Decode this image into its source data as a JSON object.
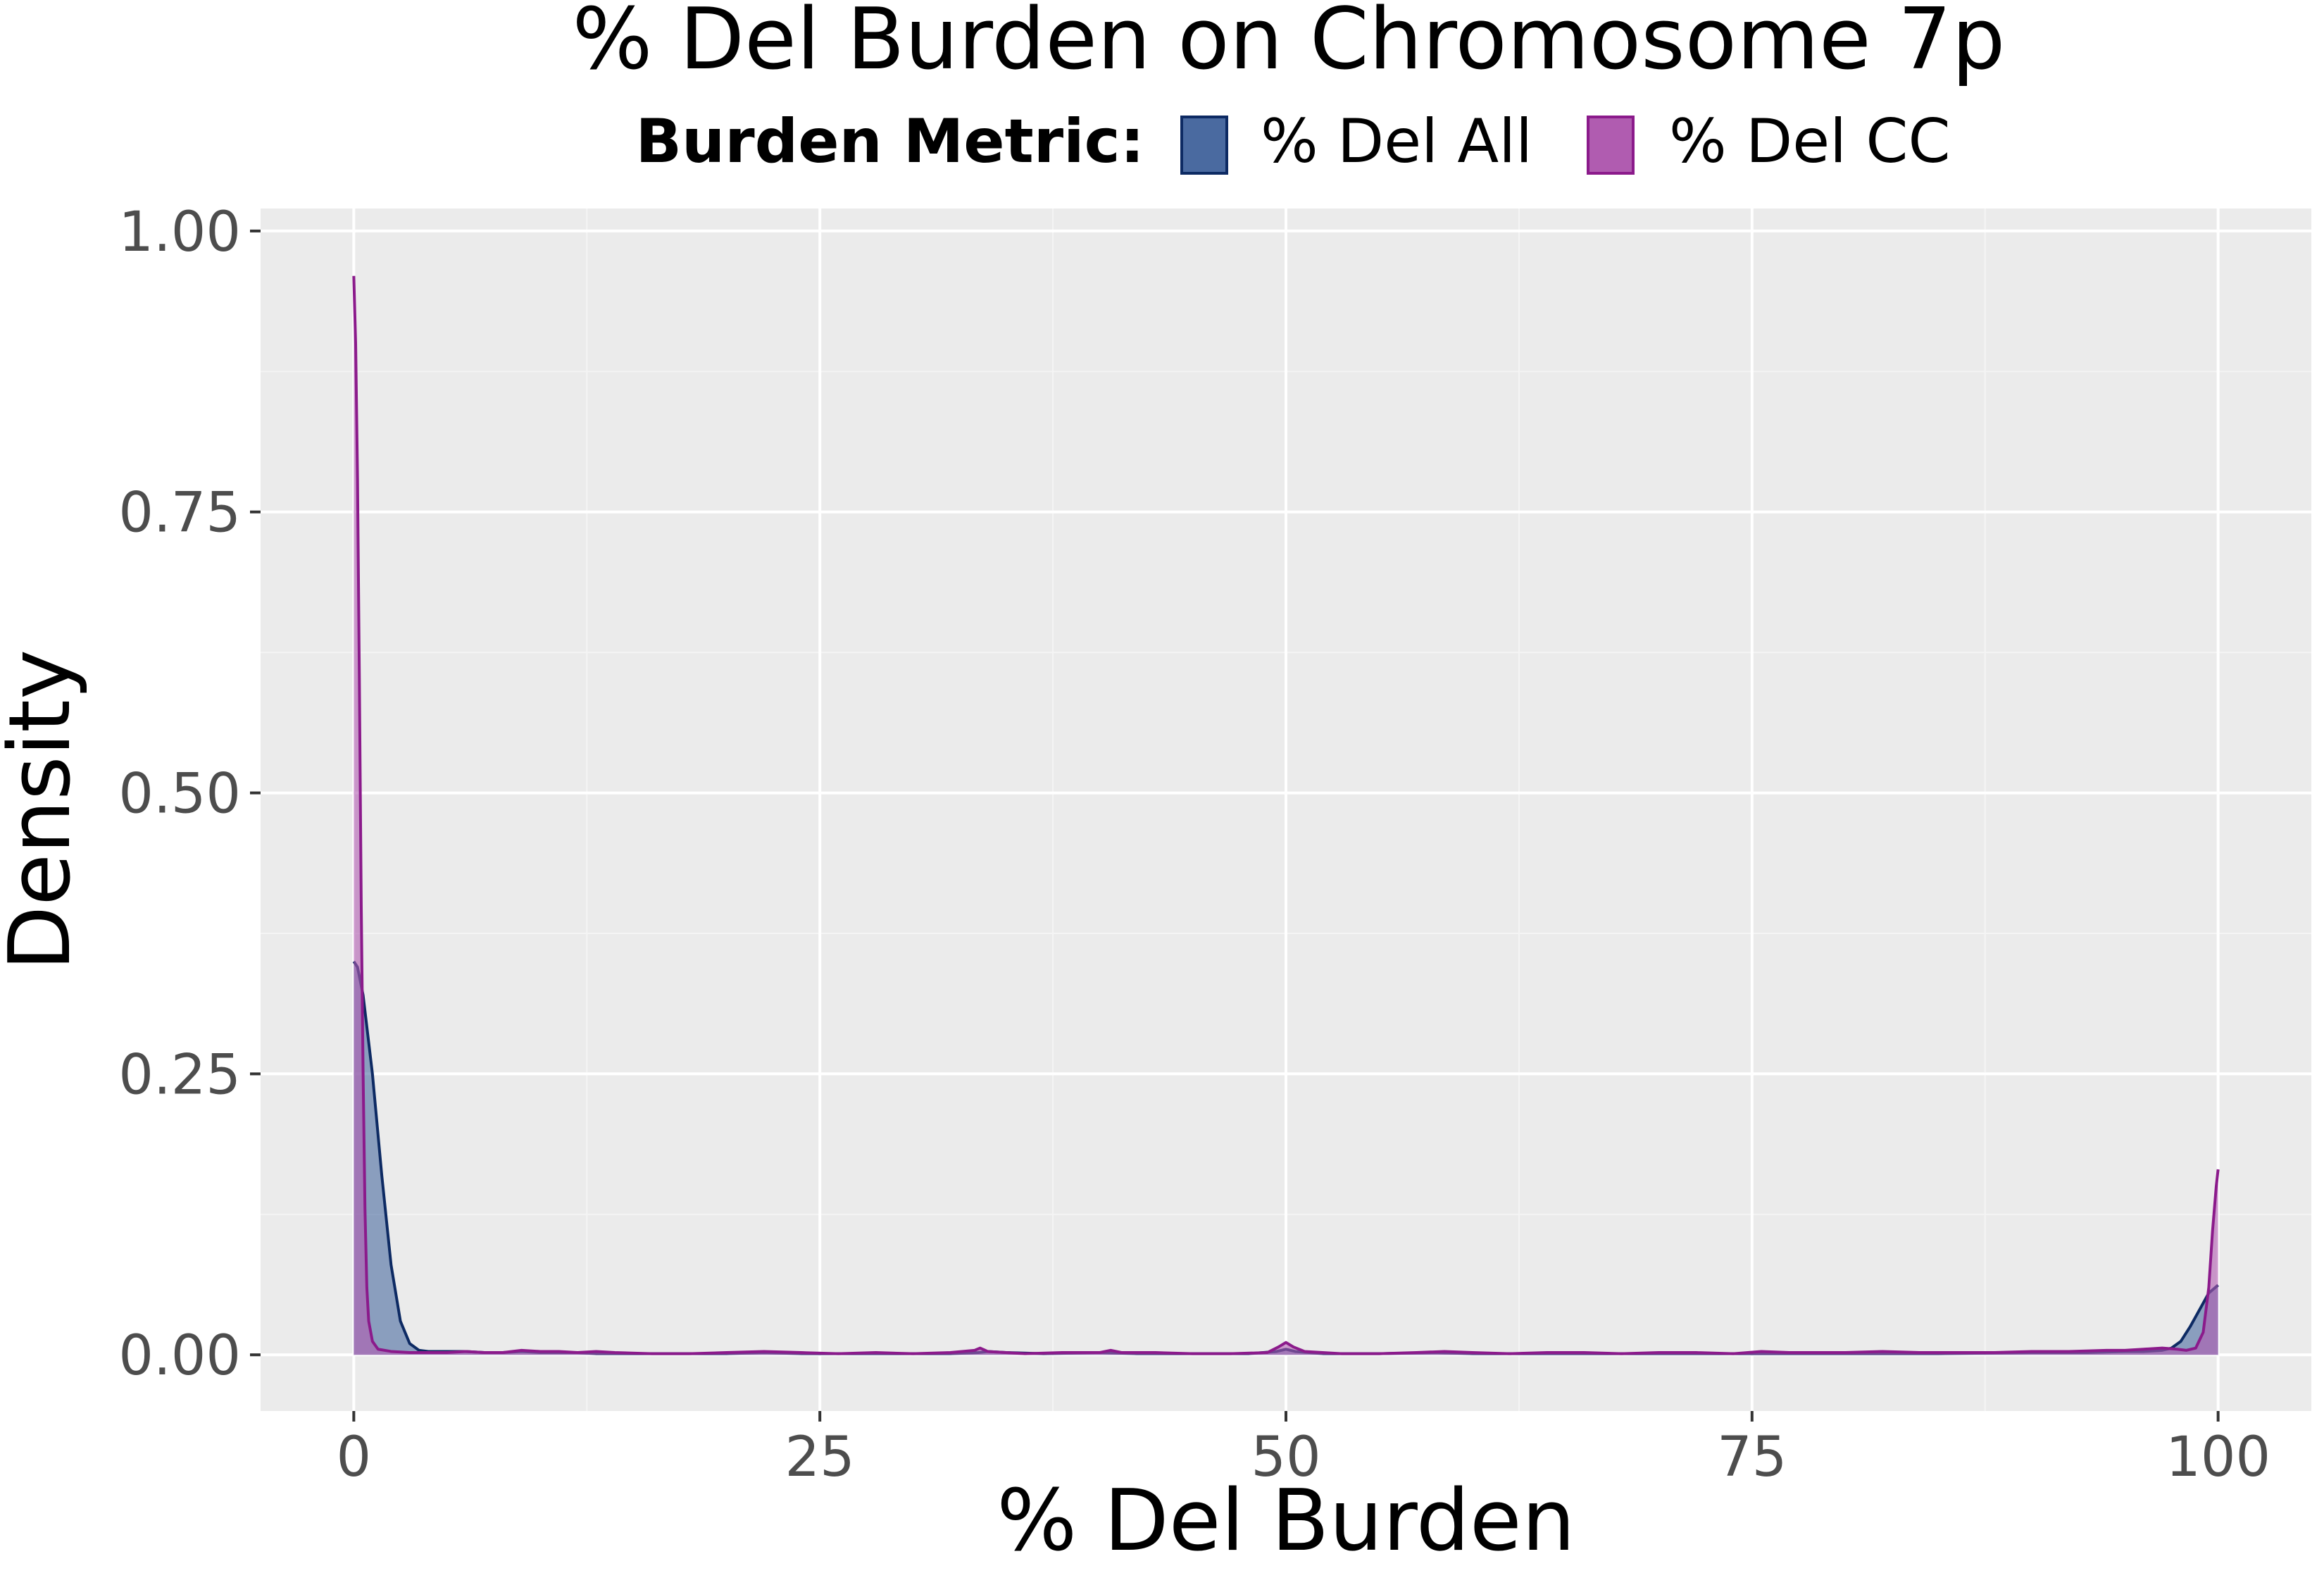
{
  "chart_data": {
    "type": "area",
    "title": "% Del Burden on Chromosome 7p",
    "xlabel": "% Del Burden",
    "ylabel": "Density",
    "xlim": [
      -5,
      105
    ],
    "ylim": [
      -0.05,
      1.02
    ],
    "x_ticks": [
      0,
      25,
      50,
      75,
      100
    ],
    "x_tick_labels": [
      "0",
      "25",
      "50",
      "75",
      "100"
    ],
    "y_ticks": [
      0,
      0.25,
      0.5,
      0.75,
      1.0
    ],
    "y_tick_labels": [
      "0.00",
      "0.25",
      "0.50",
      "0.75",
      "1.00"
    ],
    "grid": true,
    "legend": {
      "title": "Burden Metric:",
      "position": "top"
    },
    "series": [
      {
        "name": "% Del All",
        "fill": "#4a6aa0",
        "stroke": "#0d2a63",
        "points": [
          [
            0,
            0.35
          ],
          [
            0.2,
            0.345
          ],
          [
            0.5,
            0.32
          ],
          [
            1,
            0.25
          ],
          [
            1.5,
            0.16
          ],
          [
            2,
            0.08
          ],
          [
            2.5,
            0.03
          ],
          [
            3,
            0.01
          ],
          [
            3.5,
            0.004
          ],
          [
            4,
            0.003
          ],
          [
            5,
            0.003
          ],
          [
            6,
            0.003
          ],
          [
            7,
            0.002
          ],
          [
            8,
            0.002
          ],
          [
            9,
            0.003
          ],
          [
            10,
            0.002
          ],
          [
            11,
            0.002
          ],
          [
            12,
            0.002
          ],
          [
            13,
            0.001
          ],
          [
            15,
            0.001
          ],
          [
            17,
            0.001
          ],
          [
            20,
            0.001
          ],
          [
            22,
            0.002
          ],
          [
            24,
            0.001
          ],
          [
            27,
            0.001
          ],
          [
            30,
            0.001
          ],
          [
            32,
            0.001
          ],
          [
            33.5,
            0.002
          ],
          [
            34,
            0.003
          ],
          [
            35,
            0.002
          ],
          [
            37,
            0.001
          ],
          [
            40,
            0.002
          ],
          [
            42,
            0.001
          ],
          [
            45,
            0.001
          ],
          [
            48,
            0.001
          ],
          [
            49.5,
            0.003
          ],
          [
            50,
            0.005
          ],
          [
            50.5,
            0.003
          ],
          [
            52,
            0.001
          ],
          [
            55,
            0.001
          ],
          [
            58,
            0.002
          ],
          [
            60,
            0.001
          ],
          [
            62,
            0.001
          ],
          [
            65,
            0.001
          ],
          [
            70,
            0.001
          ],
          [
            75,
            0.001
          ],
          [
            80,
            0.001
          ],
          [
            85,
            0.001
          ],
          [
            90,
            0.002
          ],
          [
            93,
            0.002
          ],
          [
            95,
            0.003
          ],
          [
            96,
            0.003
          ],
          [
            97,
            0.004
          ],
          [
            97.5,
            0.006
          ],
          [
            98,
            0.012
          ],
          [
            98.5,
            0.025
          ],
          [
            99,
            0.04
          ],
          [
            99.5,
            0.055
          ],
          [
            100,
            0.062
          ]
        ]
      },
      {
        "name": "% Del CC",
        "fill": "#b05cb0",
        "stroke": "#8b1a8b",
        "points": [
          [
            0,
            0.96
          ],
          [
            0.1,
            0.9
          ],
          [
            0.2,
            0.78
          ],
          [
            0.3,
            0.6
          ],
          [
            0.4,
            0.4
          ],
          [
            0.5,
            0.25
          ],
          [
            0.6,
            0.13
          ],
          [
            0.7,
            0.06
          ],
          [
            0.8,
            0.03
          ],
          [
            1,
            0.012
          ],
          [
            1.3,
            0.005
          ],
          [
            2,
            0.003
          ],
          [
            3,
            0.002
          ],
          [
            4,
            0.002
          ],
          [
            5,
            0.002
          ],
          [
            6,
            0.003
          ],
          [
            7,
            0.002
          ],
          [
            8,
            0.002
          ],
          [
            9,
            0.004
          ],
          [
            10,
            0.003
          ],
          [
            11,
            0.003
          ],
          [
            12,
            0.002
          ],
          [
            13,
            0.003
          ],
          [
            14,
            0.002
          ],
          [
            16,
            0.001
          ],
          [
            18,
            0.001
          ],
          [
            20,
            0.002
          ],
          [
            22,
            0.003
          ],
          [
            24,
            0.002
          ],
          [
            26,
            0.001
          ],
          [
            28,
            0.002
          ],
          [
            30,
            0.001
          ],
          [
            32,
            0.002
          ],
          [
            33.3,
            0.004
          ],
          [
            33.6,
            0.006
          ],
          [
            34,
            0.003
          ],
          [
            36,
            0.001
          ],
          [
            38,
            0.002
          ],
          [
            40,
            0.002
          ],
          [
            40.6,
            0.004
          ],
          [
            41.2,
            0.002
          ],
          [
            43,
            0.002
          ],
          [
            45,
            0.001
          ],
          [
            47,
            0.001
          ],
          [
            49,
            0.002
          ],
          [
            49.6,
            0.007
          ],
          [
            50,
            0.011
          ],
          [
            50.4,
            0.007
          ],
          [
            51,
            0.003
          ],
          [
            53,
            0.001
          ],
          [
            55,
            0.001
          ],
          [
            57,
            0.002
          ],
          [
            58.5,
            0.003
          ],
          [
            60,
            0.002
          ],
          [
            62,
            0.001
          ],
          [
            64,
            0.002
          ],
          [
            66,
            0.002
          ],
          [
            68,
            0.001
          ],
          [
            70,
            0.002
          ],
          [
            72,
            0.002
          ],
          [
            74,
            0.001
          ],
          [
            75.5,
            0.003
          ],
          [
            77,
            0.002
          ],
          [
            80,
            0.002
          ],
          [
            82,
            0.003
          ],
          [
            84,
            0.002
          ],
          [
            86,
            0.002
          ],
          [
            88,
            0.002
          ],
          [
            90,
            0.003
          ],
          [
            92,
            0.003
          ],
          [
            94,
            0.004
          ],
          [
            95,
            0.004
          ],
          [
            96,
            0.005
          ],
          [
            97,
            0.006
          ],
          [
            97.8,
            0.005
          ],
          [
            98.3,
            0.004
          ],
          [
            98.8,
            0.006
          ],
          [
            99.2,
            0.02
          ],
          [
            99.5,
            0.06
          ],
          [
            99.7,
            0.11
          ],
          [
            99.9,
            0.15
          ],
          [
            100,
            0.165
          ]
        ]
      }
    ]
  },
  "colors": {
    "panel_background": "#ebebeb",
    "grid_major": "#ffffff",
    "grid_minor": "#f4f4f4",
    "axis_text": "#4d4d4d"
  }
}
